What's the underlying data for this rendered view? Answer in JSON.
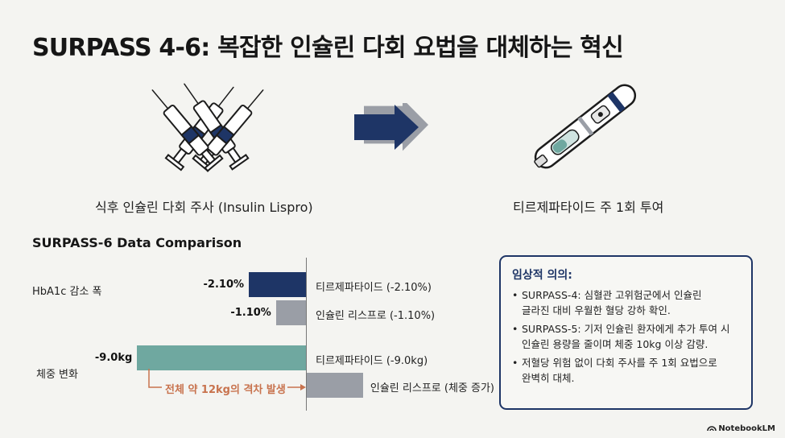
{
  "title": "SURPASS 4-6: 복잡한 인슐린 다회 요법을 대체하는 혁신",
  "top": {
    "left_caption": "식후 인슐린 다회 주사 (Insulin Lispro)",
    "right_caption": "티르제파타이드 주 1회 투여",
    "left_icon": "syringes-icon",
    "middle_icon": "arrow-right-icon",
    "right_icon": "injection-pen-icon"
  },
  "chart_section_title": "SURPASS-6 Data Comparison",
  "colors": {
    "tirzepatide_hba1c": "#1e3566",
    "lispro": "#9a9ea6",
    "tirzepatide_weight": "#6fa8a0",
    "gap_note": "#c8734e",
    "panel_border": "#1e3566"
  },
  "chart_data": {
    "type": "bar",
    "orientation": "horizontal",
    "groups": [
      {
        "label": "HbA1c 감소 폭",
        "bars": [
          {
            "series": "티르제파타이드",
            "value": -2.1,
            "value_label": "-2.10%",
            "bar_label": "티르제파타이드 (-2.10%)"
          },
          {
            "series": "인슐린 리스프로",
            "value": -1.1,
            "value_label": "-1.10%",
            "bar_label": "인슐린 리스프로 (-1.10%)"
          }
        ]
      },
      {
        "label": "체중 변화",
        "bars": [
          {
            "series": "티르제파타이드",
            "value": -9.0,
            "value_label": "-9.0kg",
            "bar_label": "티르제파타이드 (-9.0kg)"
          },
          {
            "series": "인슐린 리스프로",
            "value": 3.0,
            "value_label": "",
            "bar_label": "인슐린 리스프로 (체중 증가)"
          }
        ]
      }
    ],
    "annotation": "전체 약 12kg의 격차 발생"
  },
  "panel": {
    "title": "임상적 의의:",
    "items": [
      {
        "line1": "SURPASS-4: 심혈관 고위험군에서 인슐린",
        "line2": "글라진 대비 우월한 혈당 강하 확인."
      },
      {
        "line1": "SURPASS-5: 기저 인슐린 환자에게 추가 투여 시",
        "line2": "인슐린 용량을 줄이며 체중 10kg 이상 감량."
      },
      {
        "line1": "저혈당 위험 없이 다회 주사를 주 1회 요법으로",
        "line2": "완벽히 대체."
      }
    ]
  },
  "brand": "NotebookLM"
}
